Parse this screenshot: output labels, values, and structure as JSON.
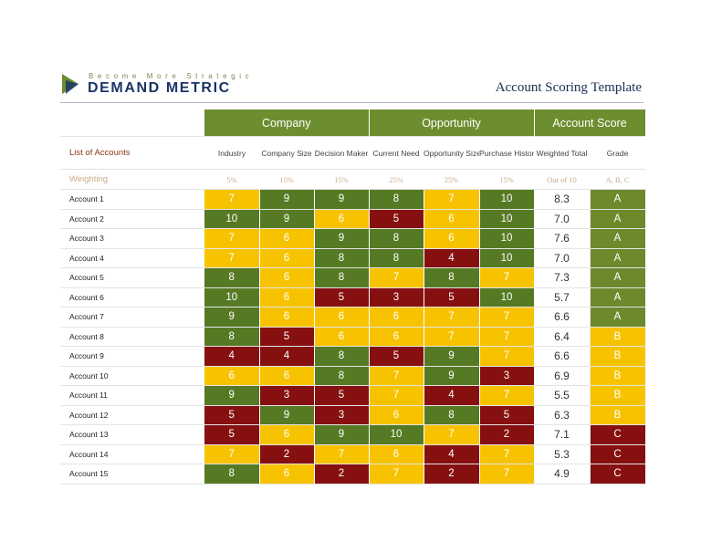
{
  "header": {
    "tagline": "Become More Strategic",
    "brand": "DEMAND METRIC",
    "title": "Account Scoring Template"
  },
  "groups": {
    "company": "Company",
    "opportunity": "Opportunity",
    "score": "Account Score"
  },
  "columns": {
    "accounts": "List of Accounts",
    "industry": "Industry",
    "company_size": "Company Size",
    "decision_maker": "Decision Maker",
    "current_need": "Current Need",
    "opportunity_size": "Opportunity Size",
    "purchase_history": "Purchase History",
    "weighted_total": "Weighted Total",
    "grade": "Grade"
  },
  "weighting": {
    "label": "Weighting",
    "industry": "5%",
    "company_size": "15%",
    "decision_maker": "15%",
    "current_need": "25%",
    "opportunity_size": "25%",
    "purchase_history": "15%",
    "weighted_total": "Out of 10",
    "grade": "A, B, C"
  },
  "colors": {
    "green": "#567a23",
    "yellow": "#f7c300",
    "red": "#861010",
    "header_green": "#6d8e2e"
  },
  "accounts": [
    {
      "name": "Account 1",
      "scores": [
        [
          "7",
          "y"
        ],
        [
          "9",
          "g"
        ],
        [
          "9",
          "g"
        ],
        [
          "8",
          "g"
        ],
        [
          "7",
          "y"
        ],
        [
          "10",
          "g"
        ]
      ],
      "total": "8.3",
      "grade": "A"
    },
    {
      "name": "Account 2",
      "scores": [
        [
          "10",
          "g"
        ],
        [
          "9",
          "g"
        ],
        [
          "6",
          "y"
        ],
        [
          "5",
          "r"
        ],
        [
          "6",
          "y"
        ],
        [
          "10",
          "g"
        ]
      ],
      "total": "7.0",
      "grade": "A"
    },
    {
      "name": "Account 3",
      "scores": [
        [
          "7",
          "y"
        ],
        [
          "6",
          "y"
        ],
        [
          "9",
          "g"
        ],
        [
          "8",
          "g"
        ],
        [
          "6",
          "y"
        ],
        [
          "10",
          "g"
        ]
      ],
      "total": "7.6",
      "grade": "A"
    },
    {
      "name": "Account 4",
      "scores": [
        [
          "7",
          "y"
        ],
        [
          "6",
          "y"
        ],
        [
          "8",
          "g"
        ],
        [
          "8",
          "g"
        ],
        [
          "4",
          "r"
        ],
        [
          "10",
          "g"
        ]
      ],
      "total": "7.0",
      "grade": "A"
    },
    {
      "name": "Account 5",
      "scores": [
        [
          "8",
          "g"
        ],
        [
          "6",
          "y"
        ],
        [
          "8",
          "g"
        ],
        [
          "7",
          "y"
        ],
        [
          "8",
          "g"
        ],
        [
          "7",
          "y"
        ]
      ],
      "total": "7.3",
      "grade": "A"
    },
    {
      "name": "Account 6",
      "scores": [
        [
          "10",
          "g"
        ],
        [
          "6",
          "y"
        ],
        [
          "5",
          "r"
        ],
        [
          "3",
          "r"
        ],
        [
          "5",
          "r"
        ],
        [
          "10",
          "g"
        ]
      ],
      "total": "5.7",
      "grade": "A"
    },
    {
      "name": "Account 7",
      "scores": [
        [
          "9",
          "g"
        ],
        [
          "6",
          "y"
        ],
        [
          "6",
          "y"
        ],
        [
          "6",
          "y"
        ],
        [
          "7",
          "y"
        ],
        [
          "7",
          "y"
        ]
      ],
      "total": "6.6",
      "grade": "A"
    },
    {
      "name": "Account 8",
      "scores": [
        [
          "8",
          "g"
        ],
        [
          "5",
          "r"
        ],
        [
          "6",
          "y"
        ],
        [
          "6",
          "y"
        ],
        [
          "7",
          "y"
        ],
        [
          "7",
          "y"
        ]
      ],
      "total": "6.4",
      "grade": "B"
    },
    {
      "name": "Account 9",
      "scores": [
        [
          "4",
          "r"
        ],
        [
          "4",
          "r"
        ],
        [
          "8",
          "g"
        ],
        [
          "5",
          "r"
        ],
        [
          "9",
          "g"
        ],
        [
          "7",
          "y"
        ]
      ],
      "total": "6.6",
      "grade": "B"
    },
    {
      "name": "Account 10",
      "scores": [
        [
          "6",
          "y"
        ],
        [
          "6",
          "y"
        ],
        [
          "8",
          "g"
        ],
        [
          "7",
          "y"
        ],
        [
          "9",
          "g"
        ],
        [
          "3",
          "r"
        ]
      ],
      "total": "6.9",
      "grade": "B"
    },
    {
      "name": "Account 11",
      "scores": [
        [
          "9",
          "g"
        ],
        [
          "3",
          "r"
        ],
        [
          "5",
          "r"
        ],
        [
          "7",
          "y"
        ],
        [
          "4",
          "r"
        ],
        [
          "7",
          "y"
        ]
      ],
      "total": "5.5",
      "grade": "B"
    },
    {
      "name": "Account 12",
      "scores": [
        [
          "5",
          "r"
        ],
        [
          "9",
          "g"
        ],
        [
          "3",
          "r"
        ],
        [
          "6",
          "y"
        ],
        [
          "8",
          "g"
        ],
        [
          "5",
          "r"
        ]
      ],
      "total": "6.3",
      "grade": "B"
    },
    {
      "name": "Account 13",
      "scores": [
        [
          "5",
          "r"
        ],
        [
          "6",
          "y"
        ],
        [
          "9",
          "g"
        ],
        [
          "10",
          "g"
        ],
        [
          "7",
          "y"
        ],
        [
          "2",
          "r"
        ]
      ],
      "total": "7.1",
      "grade": "C"
    },
    {
      "name": "Account 14",
      "scores": [
        [
          "7",
          "y"
        ],
        [
          "2",
          "r"
        ],
        [
          "7",
          "y"
        ],
        [
          "6",
          "y"
        ],
        [
          "4",
          "r"
        ],
        [
          "7",
          "y"
        ]
      ],
      "total": "5.3",
      "grade": "C"
    },
    {
      "name": "Account 15",
      "scores": [
        [
          "8",
          "g"
        ],
        [
          "6",
          "y"
        ],
        [
          "2",
          "r"
        ],
        [
          "7",
          "y"
        ],
        [
          "2",
          "r"
        ],
        [
          "7",
          "y"
        ]
      ],
      "total": "4.9",
      "grade": "C"
    }
  ]
}
